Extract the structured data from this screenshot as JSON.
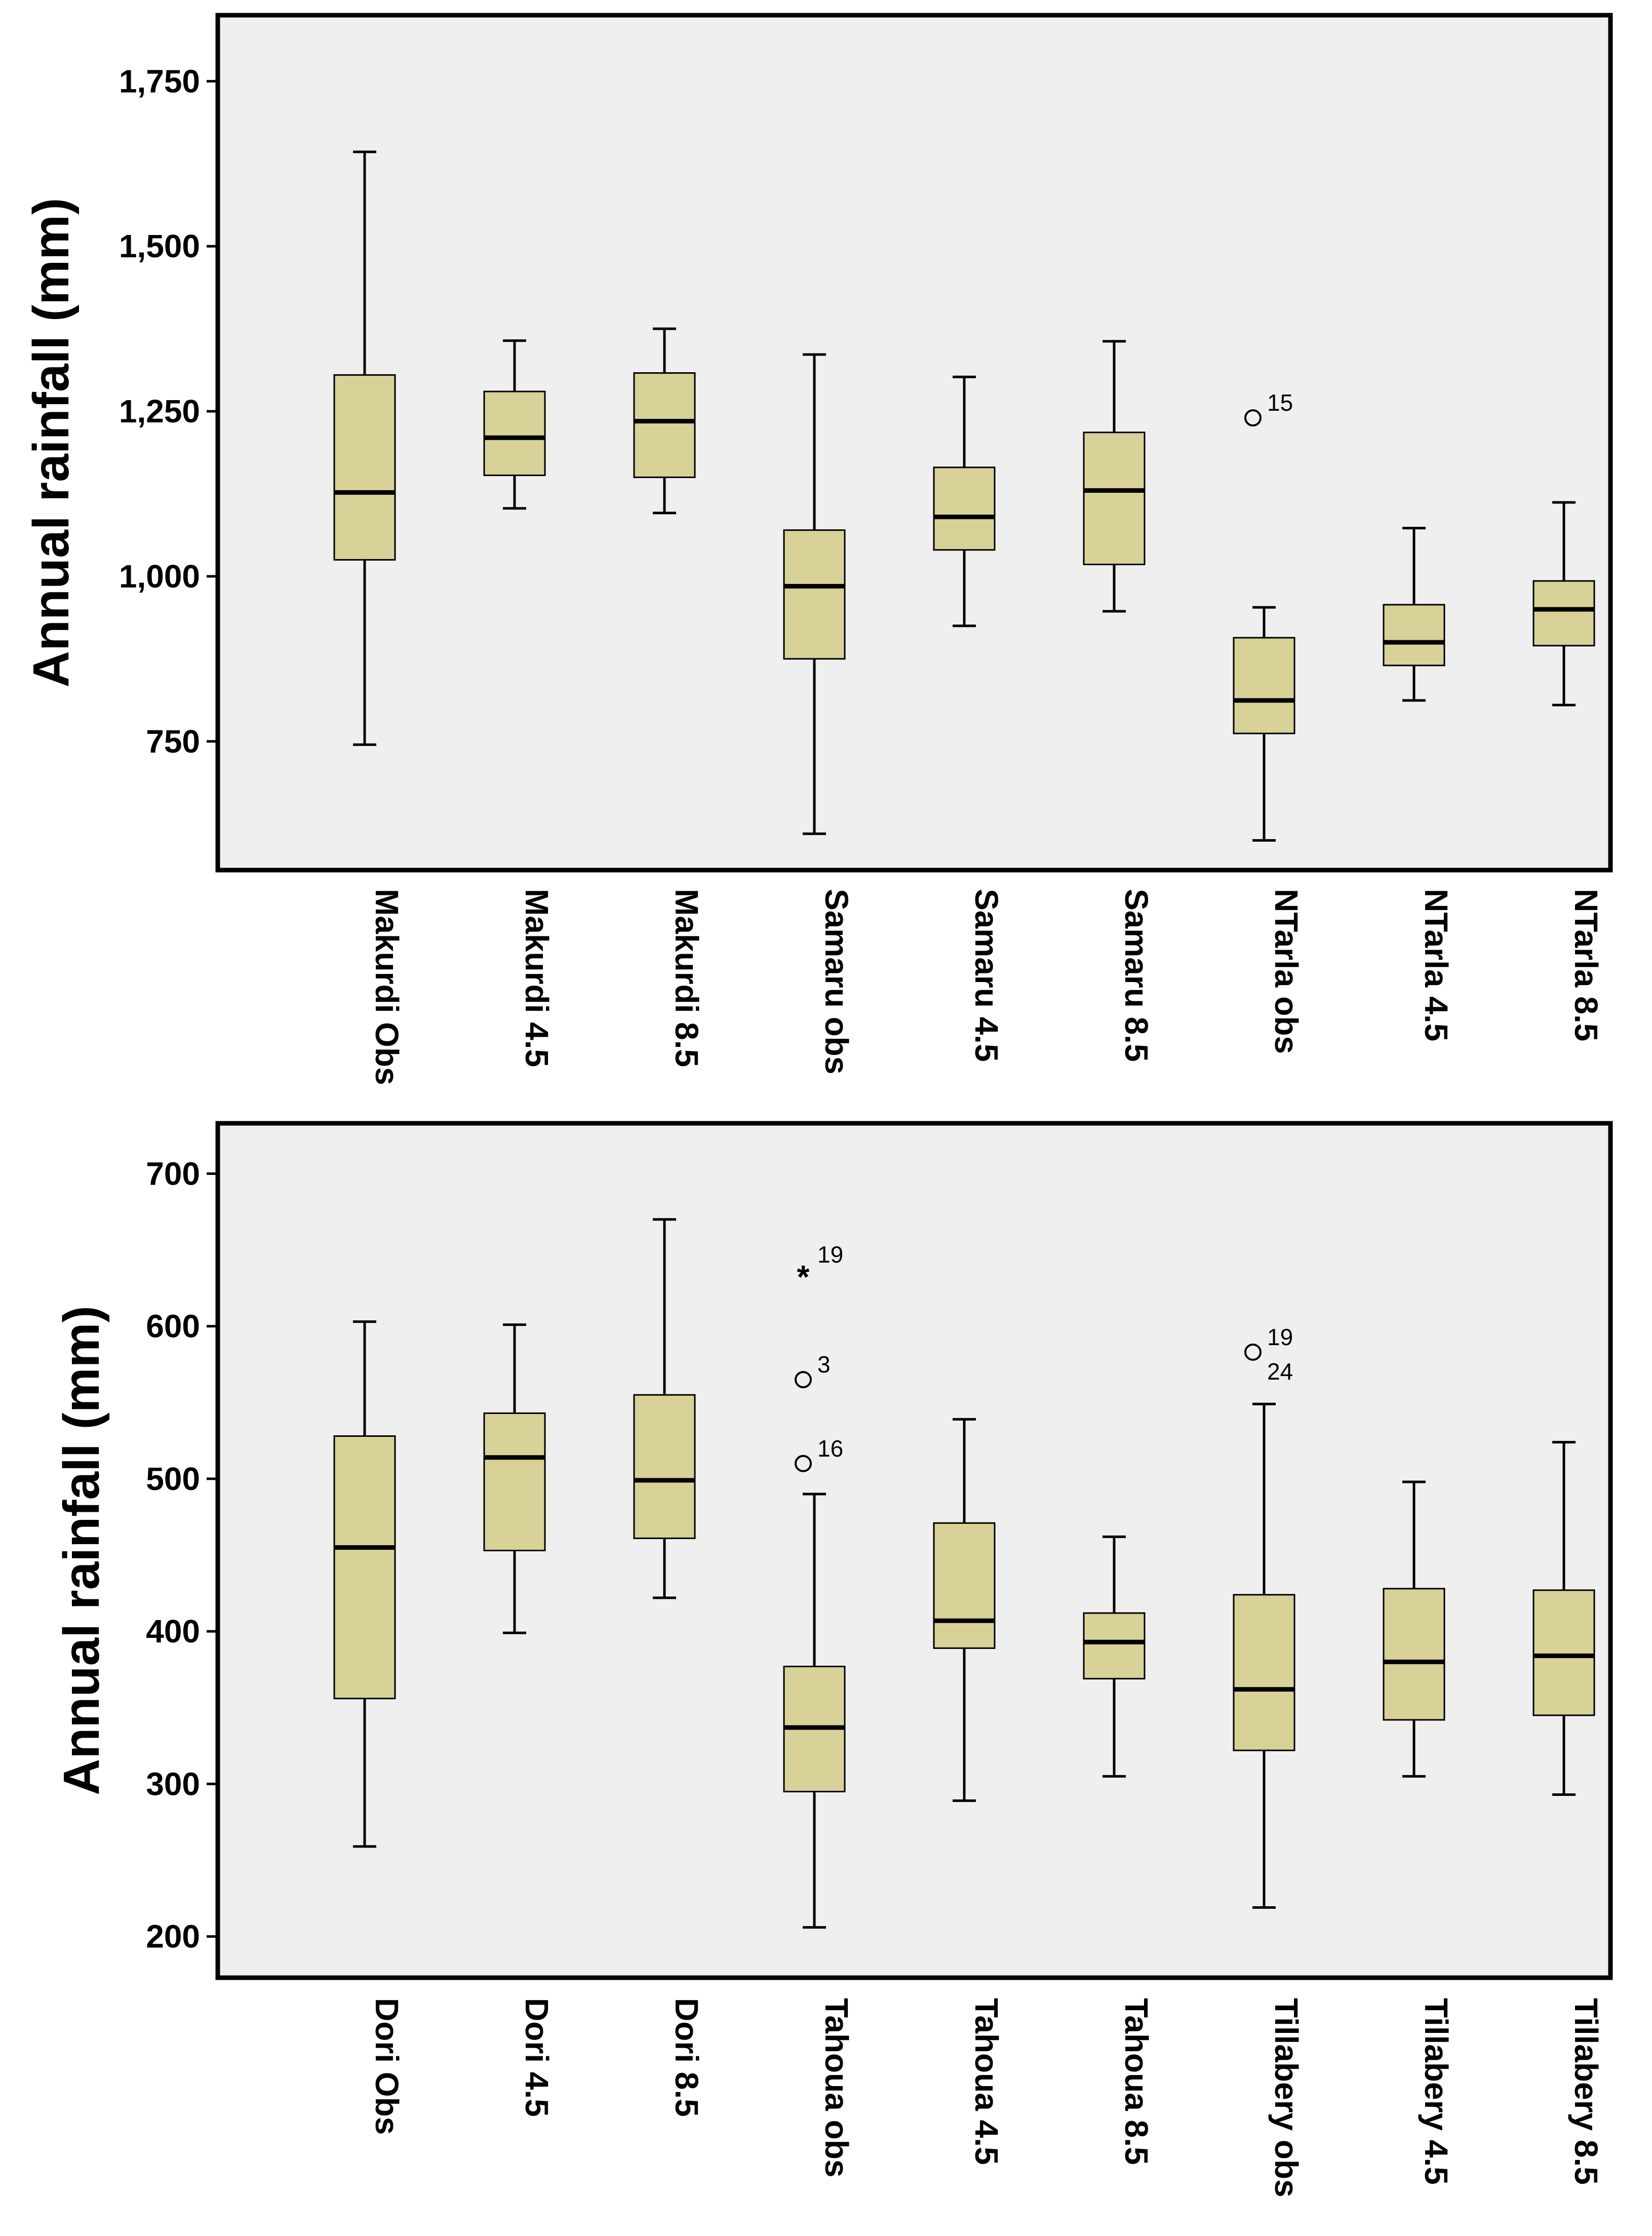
{
  "colors": {
    "plot_background": "#efefef",
    "box_fill": "#d8d198",
    "frame": "#000000",
    "page_background": "#ffffff"
  },
  "chart_data": [
    {
      "type": "boxplot",
      "panel": "top",
      "ylabel": "Annual rainfall (mm)",
      "ylim": [
        555,
        1850
      ],
      "yticks": [
        750,
        1000,
        1250,
        1500,
        1750
      ],
      "ytick_labels": [
        "750",
        "1,000",
        "1,250",
        "1,500",
        "1,750"
      ],
      "categories": [
        "Makurdi Obs",
        "Makurdi 4.5",
        "Makurdi 8.5",
        "Samaru obs",
        "Samaru 4.5",
        "Samaru 8.5",
        "NTarla obs",
        "NTarla 4.5",
        "NTarla 8.5"
      ],
      "boxes": [
        {
          "label": "Makurdi Obs",
          "min": 745,
          "q1": 1025,
          "median": 1127,
          "q3": 1305,
          "max": 1643,
          "outliers": []
        },
        {
          "label": "Makurdi 4.5",
          "min": 1103,
          "q1": 1153,
          "median": 1210,
          "q3": 1280,
          "max": 1357,
          "outliers": []
        },
        {
          "label": "Makurdi 8.5",
          "min": 1096,
          "q1": 1150,
          "median": 1235,
          "q3": 1308,
          "max": 1375,
          "outliers": []
        },
        {
          "label": "Samaru obs",
          "min": 610,
          "q1": 875,
          "median": 985,
          "q3": 1070,
          "max": 1336,
          "outliers": []
        },
        {
          "label": "Samaru 4.5",
          "min": 925,
          "q1": 1040,
          "median": 1090,
          "q3": 1165,
          "max": 1302,
          "outliers": []
        },
        {
          "label": "Samaru 8.5",
          "min": 947,
          "q1": 1018,
          "median": 1130,
          "q3": 1218,
          "max": 1356,
          "outliers": []
        },
        {
          "label": "NTarla obs",
          "min": 600,
          "q1": 762,
          "median": 812,
          "q3": 907,
          "max": 953,
          "outliers": [
            {
              "value": 1240,
              "marker": "circle",
              "label": "15"
            }
          ]
        },
        {
          "label": "NTarla 4.5",
          "min": 812,
          "q1": 865,
          "median": 900,
          "q3": 957,
          "max": 1073,
          "outliers": []
        },
        {
          "label": "NTarla 8.5",
          "min": 805,
          "q1": 895,
          "median": 950,
          "q3": 993,
          "max": 1112,
          "outliers": []
        }
      ]
    },
    {
      "type": "boxplot",
      "panel": "bottom",
      "ylabel": "Annual rainfall (mm)",
      "ylim": [
        173,
        733
      ],
      "yticks": [
        200,
        300,
        400,
        500,
        600,
        700
      ],
      "ytick_labels": [
        "200",
        "300",
        "400",
        "500",
        "600",
        "700"
      ],
      "categories": [
        "Dori Obs",
        "Dori 4.5",
        "Dori 8.5",
        "Tahoua obs",
        "Tahoua 4.5",
        "Tahoua 8.5",
        "Tillabery obs",
        "Tillabery 4.5",
        "Tillabery 8.5"
      ],
      "boxes": [
        {
          "label": "Dori Obs",
          "min": 259,
          "q1": 356,
          "median": 455,
          "q3": 528,
          "max": 603,
          "outliers": []
        },
        {
          "label": "Dori 4.5",
          "min": 399,
          "q1": 453,
          "median": 514,
          "q3": 543,
          "max": 601,
          "outliers": []
        },
        {
          "label": "Dori 8.5",
          "min": 422,
          "q1": 461,
          "median": 499,
          "q3": 555,
          "max": 670,
          "outliers": []
        },
        {
          "label": "Tahoua obs",
          "min": 206,
          "q1": 295,
          "median": 337,
          "q3": 377,
          "max": 490,
          "outliers": [
            {
              "value": 637,
              "marker": "star",
              "label": "19"
            },
            {
              "value": 565,
              "marker": "circle",
              "label": "3"
            },
            {
              "value": 510,
              "marker": "circle",
              "label": "16"
            }
          ]
        },
        {
          "label": "Tahoua 4.5",
          "min": 289,
          "q1": 389,
          "median": 407,
          "q3": 471,
          "max": 539,
          "outliers": []
        },
        {
          "label": "Tahoua 8.5",
          "min": 305,
          "q1": 369,
          "median": 393,
          "q3": 412,
          "max": 462,
          "outliers": []
        },
        {
          "label": "Tillabery obs",
          "min": 219,
          "q1": 322,
          "median": 362,
          "q3": 424,
          "max": 549,
          "outliers": [
            {
              "value": 583,
              "marker": "circle",
              "label": "19",
              "label2": "24"
            }
          ]
        },
        {
          "label": "Tillabery 4.5",
          "min": 305,
          "q1": 342,
          "median": 380,
          "q3": 428,
          "max": 498,
          "outliers": []
        },
        {
          "label": "Tillabery 8.5",
          "min": 293,
          "q1": 345,
          "median": 384,
          "q3": 427,
          "max": 524,
          "outliers": []
        }
      ]
    }
  ]
}
